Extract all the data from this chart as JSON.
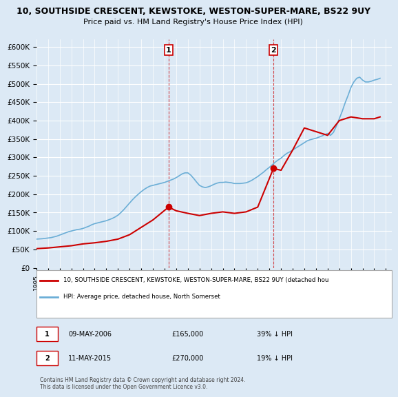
{
  "title": "10, SOUTHSIDE CRESCENT, KEWSTOKE, WESTON-SUPER-MARE, BS22 9UY",
  "subtitle": "Price paid vs. HM Land Registry's House Price Index (HPI)",
  "background_color": "#dce9f5",
  "plot_bg_color": "#dce9f5",
  "hpi_color": "#6baed6",
  "price_color": "#cc0000",
  "dashed_line_color": "#cc0000",
  "ylim": [
    0,
    620000
  ],
  "yticks": [
    0,
    50000,
    100000,
    150000,
    200000,
    250000,
    300000,
    350000,
    400000,
    450000,
    500000,
    550000,
    600000
  ],
  "x_start_year": 1995,
  "x_end_year": 2025,
  "purchase1_year": 2006.35,
  "purchase1_value": 165000,
  "purchase2_year": 2015.35,
  "purchase2_value": 270000,
  "legend_property": "10, SOUTHSIDE CRESCENT, KEWSTOKE, WESTON-SUPER-MARE, BS22 9UY (detached hou",
  "legend_hpi": "HPI: Average price, detached house, North Somerset",
  "table_row1": [
    "1",
    "09-MAY-2006",
    "£165,000",
    "39% ↓ HPI"
  ],
  "table_row2": [
    "2",
    "11-MAY-2015",
    "£270,000",
    "19% ↓ HPI"
  ],
  "footnote": "Contains HM Land Registry data © Crown copyright and database right 2024.\nThis data is licensed under the Open Government Licence v3.0.",
  "hpi_data_x": [
    1995.0,
    1995.25,
    1995.5,
    1995.75,
    1996.0,
    1996.25,
    1996.5,
    1996.75,
    1997.0,
    1997.25,
    1997.5,
    1997.75,
    1998.0,
    1998.25,
    1998.5,
    1998.75,
    1999.0,
    1999.25,
    1999.5,
    1999.75,
    2000.0,
    2000.25,
    2000.5,
    2000.75,
    2001.0,
    2001.25,
    2001.5,
    2001.75,
    2002.0,
    2002.25,
    2002.5,
    2002.75,
    2003.0,
    2003.25,
    2003.5,
    2003.75,
    2004.0,
    2004.25,
    2004.5,
    2004.75,
    2005.0,
    2005.25,
    2005.5,
    2005.75,
    2006.0,
    2006.25,
    2006.5,
    2006.75,
    2007.0,
    2007.25,
    2007.5,
    2007.75,
    2008.0,
    2008.25,
    2008.5,
    2008.75,
    2009.0,
    2009.25,
    2009.5,
    2009.75,
    2010.0,
    2010.25,
    2010.5,
    2010.75,
    2011.0,
    2011.25,
    2011.5,
    2011.75,
    2012.0,
    2012.25,
    2012.5,
    2012.75,
    2013.0,
    2013.25,
    2013.5,
    2013.75,
    2014.0,
    2014.25,
    2014.5,
    2014.75,
    2015.0,
    2015.25,
    2015.5,
    2015.75,
    2016.0,
    2016.25,
    2016.5,
    2016.75,
    2017.0,
    2017.25,
    2017.5,
    2017.75,
    2018.0,
    2018.25,
    2018.5,
    2018.75,
    2019.0,
    2019.25,
    2019.5,
    2019.75,
    2020.0,
    2020.25,
    2020.5,
    2020.75,
    2021.0,
    2021.25,
    2021.5,
    2021.75,
    2022.0,
    2022.25,
    2022.5,
    2022.75,
    2023.0,
    2023.25,
    2023.5,
    2023.75,
    2024.0,
    2024.25,
    2024.5
  ],
  "hpi_data_y": [
    78000,
    78500,
    79000,
    80000,
    81000,
    82000,
    84000,
    86000,
    89000,
    92000,
    95000,
    98000,
    100000,
    102000,
    104000,
    105000,
    107000,
    110000,
    113000,
    117000,
    120000,
    122000,
    124000,
    126000,
    128000,
    131000,
    134000,
    138000,
    143000,
    150000,
    158000,
    167000,
    176000,
    185000,
    193000,
    200000,
    207000,
    213000,
    218000,
    222000,
    224000,
    226000,
    228000,
    230000,
    232000,
    235000,
    238000,
    241000,
    245000,
    250000,
    255000,
    258000,
    258000,
    252000,
    243000,
    233000,
    224000,
    220000,
    218000,
    220000,
    223000,
    227000,
    230000,
    232000,
    232000,
    233000,
    232000,
    231000,
    229000,
    229000,
    229000,
    230000,
    231000,
    234000,
    238000,
    243000,
    248000,
    254000,
    260000,
    267000,
    273000,
    280000,
    287000,
    293000,
    298000,
    305000,
    311000,
    315000,
    320000,
    325000,
    330000,
    335000,
    340000,
    345000,
    348000,
    350000,
    352000,
    355000,
    358000,
    362000,
    365000,
    360000,
    368000,
    385000,
    405000,
    425000,
    448000,
    468000,
    490000,
    505000,
    515000,
    518000,
    510000,
    505000,
    505000,
    507000,
    510000,
    512000,
    515000
  ],
  "price_data_x": [
    1995.0,
    1996.0,
    1997.0,
    1998.0,
    1999.0,
    2000.0,
    2001.0,
    2002.0,
    2003.0,
    2004.0,
    2005.0,
    2006.35,
    2007.0,
    2008.0,
    2009.0,
    2010.0,
    2011.0,
    2012.0,
    2013.0,
    2014.0,
    2015.35,
    2016.0,
    2017.0,
    2018.0,
    2019.0,
    2020.0,
    2021.0,
    2022.0,
    2023.0,
    2024.0,
    2024.5
  ],
  "price_data_y": [
    52000,
    54000,
    57000,
    60000,
    65000,
    68000,
    72000,
    78000,
    90000,
    110000,
    130000,
    165000,
    155000,
    148000,
    142000,
    148000,
    152000,
    148000,
    152000,
    165000,
    270000,
    265000,
    320000,
    380000,
    370000,
    360000,
    400000,
    410000,
    405000,
    405000,
    410000
  ]
}
